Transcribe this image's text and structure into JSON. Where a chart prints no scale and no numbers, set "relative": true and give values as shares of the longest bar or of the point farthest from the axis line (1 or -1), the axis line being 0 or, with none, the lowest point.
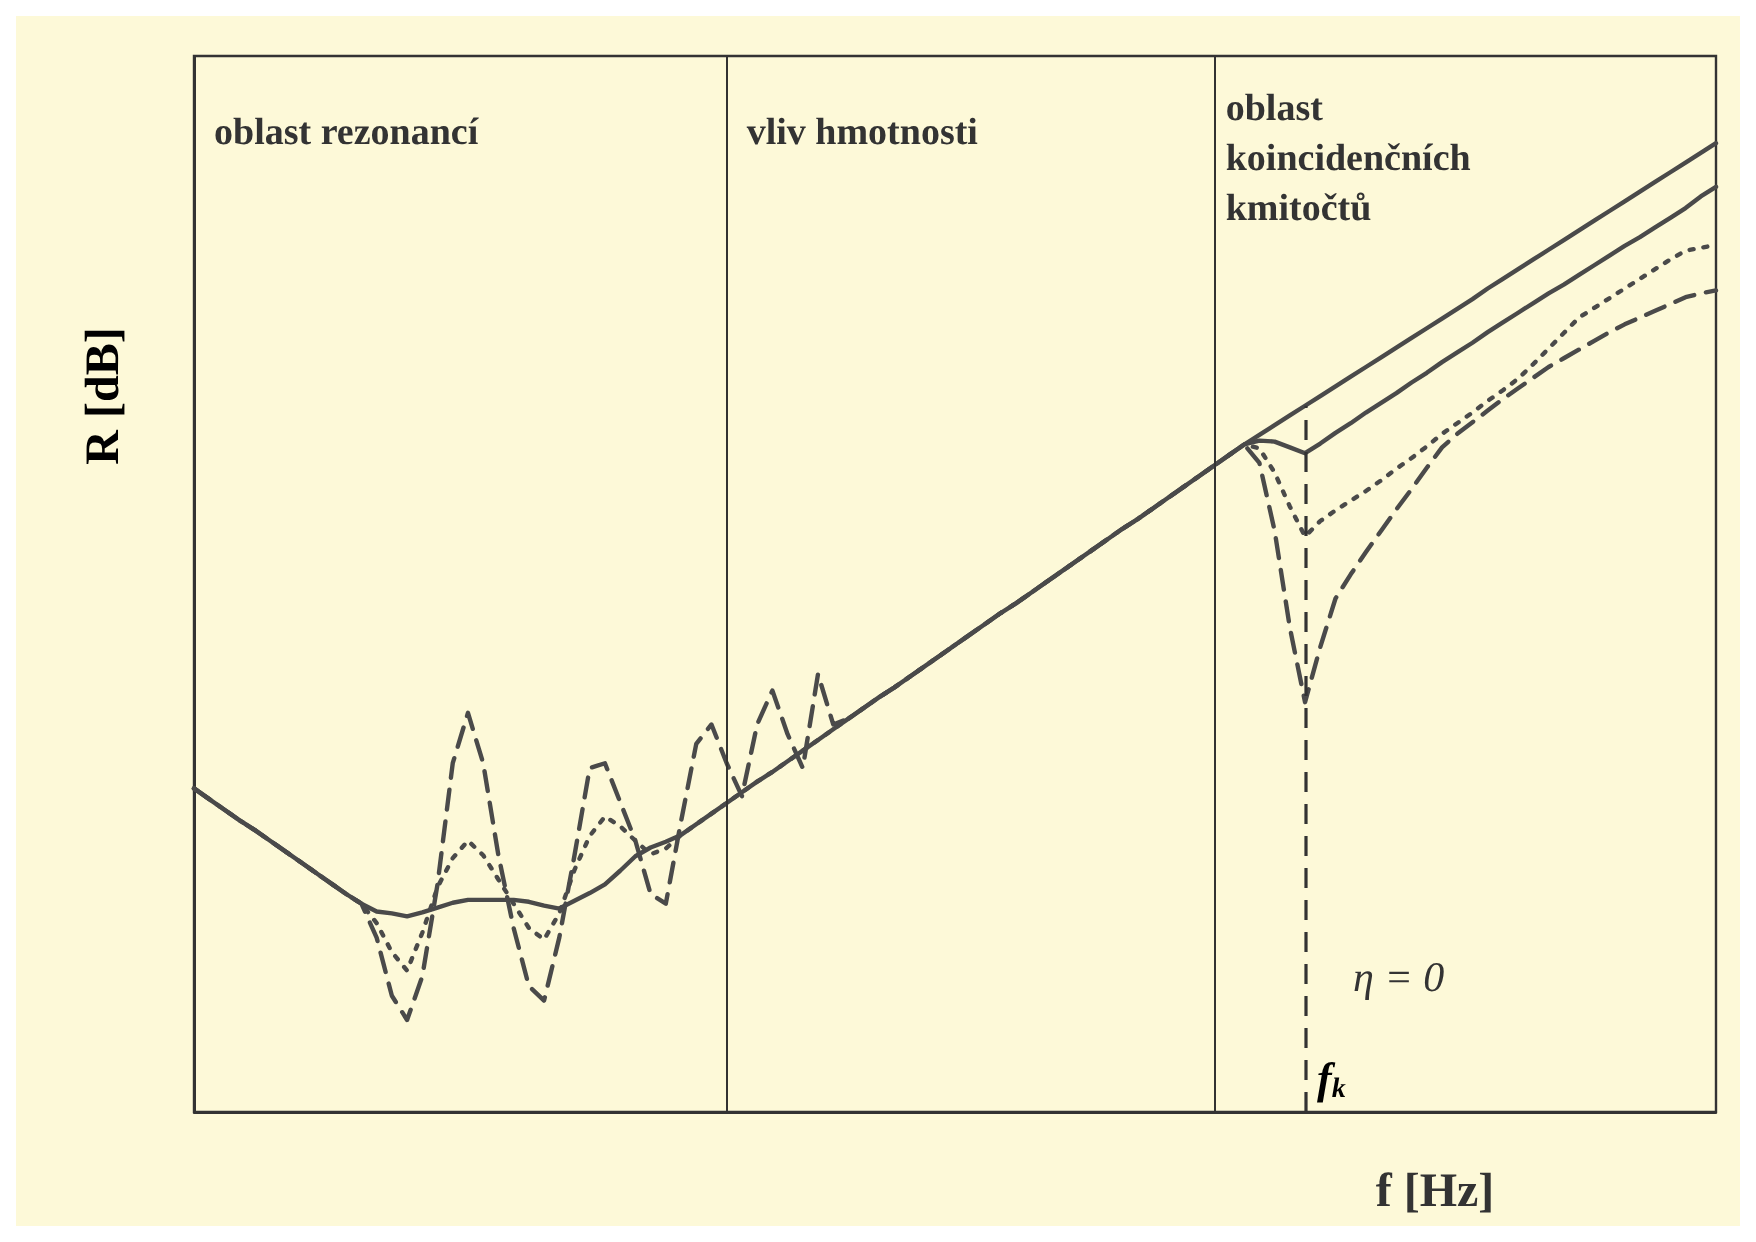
{
  "chart_data": {
    "type": "line",
    "relative": true,
    "xlabel": "f [Hz]",
    "ylabel": "R [dB]",
    "marker": "none",
    "categories": [
      null,
      null,
      null,
      null,
      null,
      null,
      null,
      null,
      null,
      null,
      null,
      null,
      null,
      null,
      null,
      null,
      null,
      null,
      null,
      null,
      null,
      null,
      null,
      null,
      null,
      null,
      null,
      null,
      null,
      null,
      null,
      null,
      null,
      null,
      null,
      null,
      null,
      null,
      null,
      null,
      null,
      null,
      null,
      null,
      null,
      null,
      null,
      null,
      null,
      null,
      null,
      null,
      null,
      null,
      null,
      null,
      null,
      null,
      null,
      null,
      null,
      null,
      null,
      null,
      null,
      null,
      null,
      null,
      null,
      null,
      null,
      null,
      null,
      null,
      null,
      null,
      null,
      null,
      null,
      null,
      null,
      null,
      null,
      null,
      null,
      null,
      null,
      null,
      null,
      null,
      null,
      null,
      null,
      null,
      null,
      null,
      null,
      null,
      null,
      null,
      null
    ],
    "annotations": [
      "oblast rezonancí",
      "vliv hmotnosti",
      "oblast koincidenčních kmitočtů",
      "η = 0",
      "f$_{k}$"
    ],
    "series": [
      {
        "color": "#4a4a4a",
        "line_style": "solid",
        "values": [
          0.334,
          0.323,
          0.312,
          0.301,
          0.291,
          0.28,
          0.269,
          0.258,
          0.247,
          0.236,
          0.225,
          0.215,
          0.207,
          0.205,
          0.202,
          0.206,
          0.211,
          0.216,
          0.219,
          0.219,
          0.219,
          0.219,
          0.217,
          0.213,
          0.21,
          0.218,
          0.226,
          0.235,
          0.249,
          0.264,
          0.273,
          0.279,
          0.286,
          0.297,
          0.308,
          0.319,
          0.33,
          0.341,
          0.351,
          0.362,
          0.373,
          0.384,
          0.395,
          0.406,
          0.417,
          0.428,
          0.438,
          0.449,
          0.46,
          0.471,
          0.482,
          0.493,
          0.504,
          0.515,
          0.525,
          0.536,
          0.547,
          0.558,
          0.569,
          0.58,
          0.591,
          0.602,
          0.612,
          0.623,
          0.634,
          0.645,
          0.656,
          0.667,
          0.678,
          0.689,
          0.693,
          0.692,
          0.686,
          0.68,
          0.69,
          0.701,
          0.711,
          0.722,
          0.732,
          0.742,
          0.753,
          0.763,
          0.774,
          0.784,
          0.794,
          0.805,
          0.815,
          0.825,
          0.835,
          0.845,
          0.854,
          0.864,
          0.874,
          0.884,
          0.894,
          0.903,
          0.913,
          0.923,
          0.933,
          0.945,
          0.955
        ]
      },
      {
        "color": "#4a4a4a",
        "line_style": "solid",
        "values": [
          null,
          null,
          null,
          null,
          null,
          null,
          null,
          null,
          null,
          null,
          null,
          null,
          null,
          null,
          null,
          null,
          null,
          null,
          null,
          null,
          null,
          null,
          null,
          null,
          null,
          null,
          null,
          null,
          null,
          null,
          null,
          null,
          null,
          null,
          null,
          null,
          null,
          null,
          null,
          null,
          null,
          null,
          null,
          null,
          null,
          null,
          null,
          null,
          null,
          null,
          null,
          null,
          null,
          null,
          null,
          null,
          null,
          null,
          null,
          null,
          null,
          null,
          null,
          null,
          null,
          null,
          null,
          null,
          null,
          0.689,
          0.699,
          0.709,
          0.719,
          0.729,
          0.739,
          0.749,
          0.759,
          0.769,
          0.779,
          0.789,
          0.799,
          0.809,
          0.819,
          0.829,
          0.839,
          0.85,
          0.86,
          0.87,
          0.88,
          0.89,
          0.9,
          0.91,
          0.92,
          0.93,
          0.94,
          0.95,
          0.96,
          0.97,
          0.98,
          0.99,
          1
        ]
      },
      {
        "color": "#4a4a4a",
        "line_style": "dotted",
        "values": [
          0.334,
          0.323,
          0.312,
          0.301,
          0.291,
          0.28,
          0.269,
          0.258,
          0.247,
          0.236,
          0.225,
          0.215,
          0.195,
          0.165,
          0.146,
          0.185,
          0.232,
          0.262,
          0.28,
          0.265,
          0.24,
          0.215,
          0.19,
          0.178,
          0.205,
          0.25,
          0.285,
          0.305,
          0.295,
          0.28,
          0.266,
          0.272,
          0.286,
          0.297,
          0.308,
          0.319,
          0.33,
          0.341,
          0.351,
          0.362,
          0.373,
          0.384,
          0.395,
          0.406,
          0.417,
          0.428,
          0.438,
          0.449,
          0.46,
          0.471,
          0.482,
          0.493,
          0.504,
          0.515,
          0.525,
          0.536,
          0.547,
          0.558,
          0.569,
          0.58,
          0.591,
          0.602,
          0.612,
          0.623,
          0.634,
          0.645,
          0.656,
          0.667,
          0.678,
          0.689,
          0.685,
          0.66,
          0.625,
          0.594,
          0.61,
          0.621,
          0.631,
          0.641,
          0.652,
          0.664,
          0.675,
          0.687,
          0.7,
          0.711,
          0.722,
          0.734,
          0.745,
          0.757,
          0.772,
          0.788,
          0.804,
          0.82,
          0.83,
          0.84,
          0.85,
          0.86,
          0.87,
          0.88,
          0.889,
          0.892,
          0.895
        ]
      },
      {
        "color": "#4a4a4a",
        "line_style": "dashed",
        "values": [
          0.334,
          0.323,
          0.312,
          0.301,
          0.291,
          0.28,
          0.269,
          0.258,
          0.247,
          0.236,
          0.225,
          0.215,
          0.18,
          0.12,
          0.095,
          0.14,
          0.235,
          0.36,
          0.412,
          0.36,
          0.265,
          0.19,
          0.13,
          0.115,
          0.18,
          0.265,
          0.355,
          0.36,
          0.32,
          0.28,
          0.225,
          0.215,
          0.3,
          0.38,
          0.4,
          0.36,
          0.326,
          0.4,
          0.435,
          0.39,
          0.355,
          0.452,
          0.4,
          0.406,
          0.417,
          0.428,
          0.438,
          0.449,
          0.46,
          0.471,
          0.482,
          0.493,
          0.504,
          0.515,
          0.525,
          0.536,
          0.547,
          0.558,
          0.569,
          0.58,
          0.591,
          0.602,
          0.612,
          0.623,
          0.634,
          0.645,
          0.656,
          0.667,
          0.678,
          0.689,
          0.67,
          0.6,
          0.5,
          0.423,
          0.48,
          0.53,
          0.555,
          0.578,
          0.6,
          0.622,
          0.643,
          0.665,
          0.686,
          0.7,
          0.712,
          0.724,
          0.736,
          0.747,
          0.758,
          0.769,
          0.778,
          0.787,
          0.796,
          0.805,
          0.813,
          0.82,
          0.827,
          0.834,
          0.841,
          0.845,
          0.848
        ]
      }
    ]
  }
}
